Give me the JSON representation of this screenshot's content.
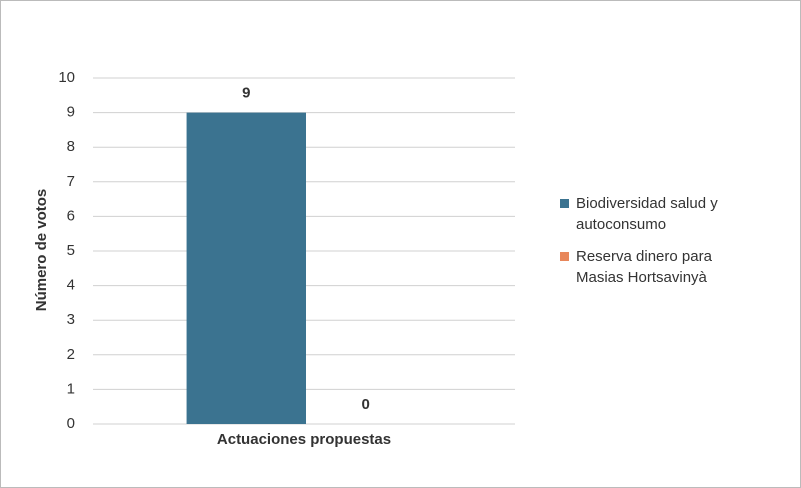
{
  "chart_data": {
    "type": "bar",
    "categories": [
      "Actuaciones propuestas"
    ],
    "series": [
      {
        "name": "Biodiversidad salud y autoconsumo",
        "color": "#3b7390",
        "values": [
          9
        ]
      },
      {
        "name": "Reserva dinero para Masias Hortsavinyà",
        "color": "#e8875b",
        "values": [
          0
        ]
      }
    ],
    "y_label": "Número de votos",
    "ylim": [
      0,
      10
    ],
    "yticks": [
      0,
      1,
      2,
      3,
      4,
      5,
      6,
      7,
      8,
      9,
      10
    ],
    "grid": true,
    "legend": "right"
  }
}
